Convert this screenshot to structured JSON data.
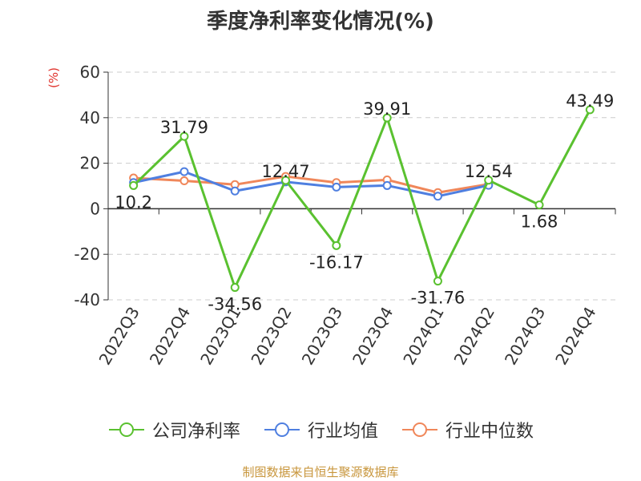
{
  "chart_data": {
    "type": "line",
    "title": "季度净利率变化情况(%)",
    "unit_label": "(%)",
    "categories": [
      "2022Q3",
      "2022Q4",
      "2023Q1",
      "2023Q2",
      "2023Q3",
      "2023Q4",
      "2024Q1",
      "2024Q2",
      "2024Q3",
      "2024Q4"
    ],
    "ylim": [
      -40,
      60
    ],
    "yticks": [
      -40,
      -20,
      0,
      20,
      40,
      60
    ],
    "grid": true,
    "legend_position": "bottom",
    "series": [
      {
        "name": "公司净利率",
        "color": "#5ac130",
        "values": [
          10.2,
          31.79,
          -34.56,
          12.47,
          -16.17,
          39.91,
          -31.76,
          12.54,
          1.68,
          43.49
        ],
        "labels": [
          "10.2",
          "31.79",
          "-34.56",
          "12.47",
          "-16.17",
          "39.91",
          "-31.76",
          "12.54",
          "1.68",
          "43.49"
        ]
      },
      {
        "name": "行业均值",
        "color": "#4f7fe0",
        "values": [
          11.5,
          16.3,
          7.8,
          11.8,
          9.5,
          10.2,
          5.5,
          10.3,
          null,
          null
        ]
      },
      {
        "name": "行业中位数",
        "color": "#f0875a",
        "values": [
          13.5,
          12.3,
          10.6,
          14.2,
          11.5,
          12.7,
          7.1,
          10.8,
          null,
          null
        ]
      }
    ]
  },
  "source_text": "制图数据来自恒生聚源数据库"
}
